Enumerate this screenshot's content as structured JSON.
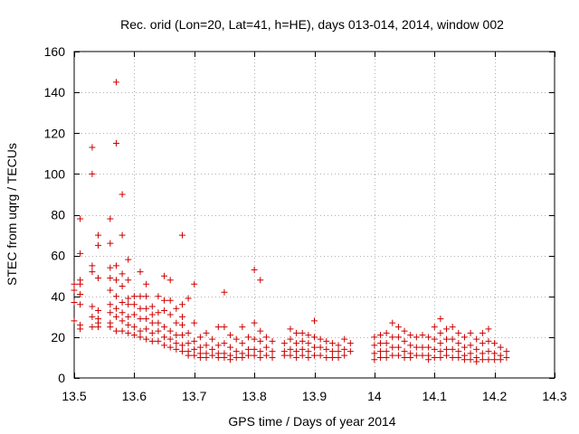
{
  "chart_data": {
    "type": "scatter",
    "title": "Rec. orid (Lon=20, Lat=41, h=HE), days 013-014, 2014, window 002",
    "xlabel": "GPS time / Days of year 2014",
    "ylabel": "STEC from uqrg / TECUs",
    "xlim": [
      13.5,
      14.3
    ],
    "ylim": [
      0,
      160
    ],
    "xticks": [
      13.5,
      13.6,
      13.7,
      13.8,
      13.9,
      14.0,
      14.1,
      14.2,
      14.3
    ],
    "xtick_labels": [
      "13.5",
      "13.6",
      "13.7",
      "13.8",
      "13.9",
      "14",
      "14.1",
      "14.2",
      "14.3"
    ],
    "yticks": [
      0,
      20,
      40,
      60,
      80,
      100,
      120,
      140,
      160
    ],
    "ytick_labels": [
      "0",
      "20",
      "40",
      "60",
      "80",
      "100",
      "120",
      "140",
      "160"
    ],
    "grid": true,
    "legend": "none",
    "marker": "plus",
    "color": "#cc0000",
    "points": [
      [
        13.5,
        46
      ],
      [
        13.5,
        43
      ],
      [
        13.5,
        37
      ],
      [
        13.5,
        28
      ],
      [
        13.51,
        78
      ],
      [
        13.51,
        61
      ],
      [
        13.51,
        48
      ],
      [
        13.51,
        46
      ],
      [
        13.51,
        41
      ],
      [
        13.51,
        36
      ],
      [
        13.51,
        26
      ],
      [
        13.51,
        24
      ],
      [
        13.53,
        113
      ],
      [
        13.53,
        100
      ],
      [
        13.53,
        55
      ],
      [
        13.53,
        52
      ],
      [
        13.53,
        35
      ],
      [
        13.53,
        30
      ],
      [
        13.53,
        25
      ],
      [
        13.54,
        70
      ],
      [
        13.54,
        65
      ],
      [
        13.54,
        49
      ],
      [
        13.54,
        33
      ],
      [
        13.54,
        29
      ],
      [
        13.54,
        27
      ],
      [
        13.54,
        25
      ],
      [
        13.56,
        78
      ],
      [
        13.56,
        66
      ],
      [
        13.56,
        54
      ],
      [
        13.56,
        49
      ],
      [
        13.56,
        43
      ],
      [
        13.56,
        36
      ],
      [
        13.56,
        32
      ],
      [
        13.56,
        27
      ],
      [
        13.56,
        25
      ],
      [
        13.57,
        145
      ],
      [
        13.57,
        115
      ],
      [
        13.57,
        55
      ],
      [
        13.57,
        48
      ],
      [
        13.57,
        40
      ],
      [
        13.57,
        34
      ],
      [
        13.57,
        30
      ],
      [
        13.57,
        23
      ],
      [
        13.58,
        90
      ],
      [
        13.58,
        70
      ],
      [
        13.58,
        51
      ],
      [
        13.58,
        45
      ],
      [
        13.58,
        37
      ],
      [
        13.58,
        32
      ],
      [
        13.58,
        28
      ],
      [
        13.58,
        23
      ],
      [
        13.59,
        58
      ],
      [
        13.59,
        48
      ],
      [
        13.59,
        39
      ],
      [
        13.59,
        36
      ],
      [
        13.59,
        30
      ],
      [
        13.59,
        26
      ],
      [
        13.59,
        22
      ],
      [
        13.6,
        40
      ],
      [
        13.6,
        36
      ],
      [
        13.6,
        31
      ],
      [
        13.6,
        25
      ],
      [
        13.6,
        21
      ],
      [
        13.61,
        52
      ],
      [
        13.61,
        40
      ],
      [
        13.61,
        34
      ],
      [
        13.61,
        29
      ],
      [
        13.61,
        23
      ],
      [
        13.61,
        20
      ],
      [
        13.62,
        46
      ],
      [
        13.62,
        40
      ],
      [
        13.62,
        34
      ],
      [
        13.62,
        29
      ],
      [
        13.62,
        24
      ],
      [
        13.62,
        19
      ],
      [
        13.63,
        35
      ],
      [
        13.63,
        31
      ],
      [
        13.63,
        27
      ],
      [
        13.63,
        22
      ],
      [
        13.63,
        18
      ],
      [
        13.64,
        40
      ],
      [
        13.64,
        32
      ],
      [
        13.64,
        27
      ],
      [
        13.64,
        23
      ],
      [
        13.64,
        18
      ],
      [
        13.65,
        50
      ],
      [
        13.65,
        38
      ],
      [
        13.65,
        33
      ],
      [
        13.65,
        25
      ],
      [
        13.65,
        20
      ],
      [
        13.65,
        16
      ],
      [
        13.66,
        48
      ],
      [
        13.66,
        38
      ],
      [
        13.66,
        31
      ],
      [
        13.66,
        23
      ],
      [
        13.66,
        19
      ],
      [
        13.66,
        15
      ],
      [
        13.67,
        34
      ],
      [
        13.67,
        27
      ],
      [
        13.67,
        21
      ],
      [
        13.67,
        17
      ],
      [
        13.67,
        14
      ],
      [
        13.68,
        70
      ],
      [
        13.68,
        36
      ],
      [
        13.68,
        30
      ],
      [
        13.68,
        26
      ],
      [
        13.68,
        21
      ],
      [
        13.68,
        16
      ],
      [
        13.68,
        13
      ],
      [
        13.69,
        39
      ],
      [
        13.69,
        22
      ],
      [
        13.69,
        17
      ],
      [
        13.69,
        13
      ],
      [
        13.69,
        11
      ],
      [
        13.7,
        46
      ],
      [
        13.7,
        27
      ],
      [
        13.7,
        18
      ],
      [
        13.7,
        14
      ],
      [
        13.7,
        11
      ],
      [
        13.71,
        20
      ],
      [
        13.71,
        15
      ],
      [
        13.71,
        12
      ],
      [
        13.71,
        10
      ],
      [
        13.72,
        22
      ],
      [
        13.72,
        16
      ],
      [
        13.72,
        12
      ],
      [
        13.72,
        10
      ],
      [
        13.73,
        19
      ],
      [
        13.73,
        14
      ],
      [
        13.73,
        11
      ],
      [
        13.74,
        25
      ],
      [
        13.74,
        16
      ],
      [
        13.74,
        12
      ],
      [
        13.74,
        10
      ],
      [
        13.75,
        42
      ],
      [
        13.75,
        25
      ],
      [
        13.75,
        17
      ],
      [
        13.75,
        12
      ],
      [
        13.75,
        10
      ],
      [
        13.76,
        21
      ],
      [
        13.76,
        15
      ],
      [
        13.76,
        11
      ],
      [
        13.76,
        9
      ],
      [
        13.77,
        19
      ],
      [
        13.77,
        13
      ],
      [
        13.77,
        10
      ],
      [
        13.78,
        25
      ],
      [
        13.78,
        17
      ],
      [
        13.78,
        12
      ],
      [
        13.78,
        10
      ],
      [
        13.79,
        20
      ],
      [
        13.79,
        14
      ],
      [
        13.79,
        11
      ],
      [
        13.8,
        53
      ],
      [
        13.8,
        27
      ],
      [
        13.8,
        19
      ],
      [
        13.8,
        14
      ],
      [
        13.8,
        11
      ],
      [
        13.81,
        48
      ],
      [
        13.81,
        23
      ],
      [
        13.81,
        18
      ],
      [
        13.81,
        13
      ],
      [
        13.81,
        10
      ],
      [
        13.82,
        20
      ],
      [
        13.82,
        15
      ],
      [
        13.82,
        11
      ],
      [
        13.83,
        18
      ],
      [
        13.83,
        13
      ],
      [
        13.83,
        10
      ],
      [
        13.85,
        17
      ],
      [
        13.85,
        13
      ],
      [
        13.85,
        11
      ],
      [
        13.86,
        24
      ],
      [
        13.86,
        19
      ],
      [
        13.86,
        14
      ],
      [
        13.86,
        11
      ],
      [
        13.87,
        22
      ],
      [
        13.87,
        17
      ],
      [
        13.87,
        13
      ],
      [
        13.87,
        10
      ],
      [
        13.88,
        22
      ],
      [
        13.88,
        18
      ],
      [
        13.88,
        14
      ],
      [
        13.88,
        11
      ],
      [
        13.89,
        21
      ],
      [
        13.89,
        17
      ],
      [
        13.89,
        13
      ],
      [
        13.89,
        10
      ],
      [
        13.9,
        28
      ],
      [
        13.9,
        20
      ],
      [
        13.9,
        15
      ],
      [
        13.9,
        11
      ],
      [
        13.91,
        19
      ],
      [
        13.91,
        15
      ],
      [
        13.91,
        11
      ],
      [
        13.92,
        18
      ],
      [
        13.92,
        14
      ],
      [
        13.92,
        10
      ],
      [
        13.93,
        17
      ],
      [
        13.93,
        13
      ],
      [
        13.93,
        10
      ],
      [
        13.94,
        16
      ],
      [
        13.94,
        13
      ],
      [
        13.94,
        10
      ],
      [
        13.95,
        19
      ],
      [
        13.95,
        14
      ],
      [
        13.95,
        11
      ],
      [
        13.96,
        17
      ],
      [
        13.96,
        13
      ],
      [
        14.0,
        20
      ],
      [
        14.0,
        16
      ],
      [
        14.0,
        12
      ],
      [
        14.0,
        9
      ],
      [
        14.01,
        21
      ],
      [
        14.01,
        17
      ],
      [
        14.01,
        13
      ],
      [
        14.01,
        10
      ],
      [
        14.02,
        22
      ],
      [
        14.02,
        17
      ],
      [
        14.02,
        13
      ],
      [
        14.02,
        10
      ],
      [
        14.03,
        27
      ],
      [
        14.03,
        20
      ],
      [
        14.03,
        15
      ],
      [
        14.03,
        11
      ],
      [
        14.04,
        25
      ],
      [
        14.04,
        20
      ],
      [
        14.04,
        15
      ],
      [
        14.04,
        11
      ],
      [
        14.05,
        23
      ],
      [
        14.05,
        18
      ],
      [
        14.05,
        13
      ],
      [
        14.05,
        10
      ],
      [
        14.06,
        21
      ],
      [
        14.06,
        16
      ],
      [
        14.06,
        12
      ],
      [
        14.06,
        10
      ],
      [
        14.07,
        20
      ],
      [
        14.07,
        15
      ],
      [
        14.07,
        11
      ],
      [
        14.08,
        21
      ],
      [
        14.08,
        15
      ],
      [
        14.08,
        11
      ],
      [
        14.09,
        20
      ],
      [
        14.09,
        15
      ],
      [
        14.09,
        11
      ],
      [
        14.09,
        9
      ],
      [
        14.1,
        25
      ],
      [
        14.1,
        19
      ],
      [
        14.1,
        14
      ],
      [
        14.1,
        10
      ],
      [
        14.11,
        29
      ],
      [
        14.11,
        22
      ],
      [
        14.11,
        17
      ],
      [
        14.11,
        13
      ],
      [
        14.11,
        10
      ],
      [
        14.12,
        24
      ],
      [
        14.12,
        19
      ],
      [
        14.12,
        14
      ],
      [
        14.12,
        11
      ],
      [
        14.13,
        25
      ],
      [
        14.13,
        19
      ],
      [
        14.13,
        14
      ],
      [
        14.13,
        10
      ],
      [
        14.14,
        22
      ],
      [
        14.14,
        17
      ],
      [
        14.14,
        13
      ],
      [
        14.14,
        10
      ],
      [
        14.15,
        20
      ],
      [
        14.15,
        15
      ],
      [
        14.15,
        11
      ],
      [
        14.15,
        9
      ],
      [
        14.16,
        22
      ],
      [
        14.16,
        16
      ],
      [
        14.16,
        12
      ],
      [
        14.16,
        9
      ],
      [
        14.17,
        19
      ],
      [
        14.17,
        14
      ],
      [
        14.17,
        10
      ],
      [
        14.17,
        8
      ],
      [
        14.18,
        22
      ],
      [
        14.18,
        17
      ],
      [
        14.18,
        12
      ],
      [
        14.18,
        9
      ],
      [
        14.19,
        24
      ],
      [
        14.19,
        18
      ],
      [
        14.19,
        13
      ],
      [
        14.19,
        9
      ],
      [
        14.2,
        17
      ],
      [
        14.2,
        12
      ],
      [
        14.2,
        9
      ],
      [
        14.21,
        15
      ],
      [
        14.21,
        11
      ],
      [
        14.21,
        9
      ],
      [
        14.22,
        13
      ],
      [
        14.22,
        10
      ]
    ]
  }
}
